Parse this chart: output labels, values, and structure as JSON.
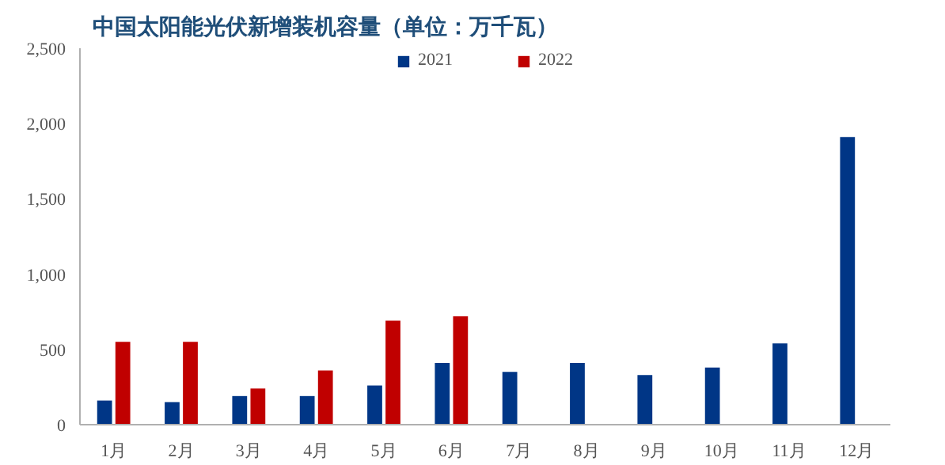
{
  "chart_data": {
    "type": "bar",
    "title": "中国太阳能光伏新增装机容量（单位：万千瓦）",
    "categories": [
      "1月",
      "2月",
      "3月",
      "4月",
      "5月",
      "6月",
      "7月",
      "8月",
      "9月",
      "10月",
      "11月",
      "12月"
    ],
    "series": [
      {
        "name": "2021",
        "color": "#003686",
        "values": [
          160,
          150,
          190,
          190,
          260,
          410,
          350,
          410,
          330,
          380,
          540,
          1910
        ]
      },
      {
        "name": "2022",
        "color": "#c00000",
        "values": [
          550,
          550,
          240,
          360,
          690,
          720,
          null,
          null,
          null,
          null,
          null,
          null
        ]
      }
    ],
    "ylim": [
      0,
      2500
    ],
    "yticks": [
      0,
      {
        "value": 500,
        "label": "500"
      },
      {
        "value": 1000,
        "label": "1,000"
      },
      {
        "value": 1500,
        "label": "1,500"
      },
      {
        "value": 2000,
        "label": "2,000"
      },
      {
        "value": 2500,
        "label": "2,500"
      }
    ],
    "grid": false,
    "legend": "top"
  }
}
